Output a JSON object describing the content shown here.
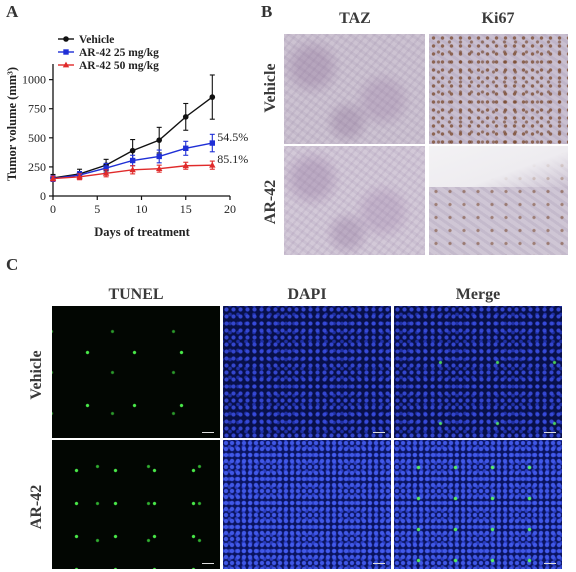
{
  "panel_a": {
    "letter": "A",
    "chart_data": {
      "type": "line",
      "xlabel": "Days of treatment",
      "ylabel": "Tumor volume (mm³)",
      "xlim": [
        0,
        20
      ],
      "ylim": [
        0,
        1100
      ],
      "xticks": [
        "0",
        "5",
        "10",
        "15",
        "20"
      ],
      "yticks": [
        "0",
        "250",
        "500",
        "750",
        "1000"
      ],
      "x": [
        0,
        3,
        6,
        9,
        12,
        15,
        18
      ],
      "legend_position": "top-left",
      "series": [
        {
          "name": "Vehicle",
          "color": "#111111",
          "marker": "circle",
          "values": [
            155,
            190,
            265,
            390,
            480,
            680,
            850
          ],
          "errors": [
            30,
            40,
            50,
            95,
            110,
            115,
            190
          ]
        },
        {
          "name": "AR-42 25 mg/kg",
          "color": "#1f2fd6",
          "marker": "square",
          "values": [
            150,
            180,
            240,
            305,
            340,
            410,
            455
          ],
          "errors": [
            25,
            30,
            40,
            45,
            55,
            60,
            75
          ],
          "annotation": "54.5%"
        },
        {
          "name": "AR-42 50 mg/kg",
          "color": "#e02a2a",
          "marker": "triangle",
          "values": [
            150,
            165,
            195,
            225,
            235,
            260,
            265
          ],
          "errors": [
            20,
            25,
            30,
            35,
            30,
            30,
            35
          ],
          "annotation": "85.1%"
        }
      ]
    }
  },
  "panel_b": {
    "letter": "B",
    "columns": [
      "TAZ",
      "Ki67"
    ],
    "rows": [
      "Vehicle",
      "AR-42"
    ]
  },
  "panel_c": {
    "letter": "C",
    "columns": [
      "TUNEL",
      "DAPI",
      "Merge"
    ],
    "rows": [
      "Vehicle",
      "AR-42"
    ]
  }
}
